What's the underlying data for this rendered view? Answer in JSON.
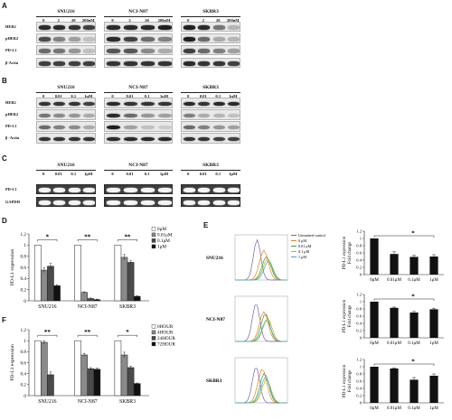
{
  "panels": {
    "A": {
      "label": "A",
      "row_labels": [
        "HER2",
        "pHER2",
        "PD-L1",
        "β-Actin"
      ],
      "cell_lines": [
        "SNU216",
        "NCI-N87",
        "SKBR3"
      ],
      "conc_labels": [
        "0",
        "2",
        "20",
        "200nM"
      ]
    },
    "B": {
      "label": "B",
      "row_labels": [
        "HER2",
        "pHER2",
        "PD-L1",
        "β -Actin"
      ],
      "cell_lines": [
        "SNU216",
        "NCI-N87",
        "SKBR3"
      ],
      "conc_labels": [
        "0",
        "0.01",
        "0.1",
        "1μM"
      ]
    },
    "C": {
      "label": "C",
      "row_labels": [
        "PD-L1",
        "GAPDH"
      ],
      "cell_lines": [
        "SNU216",
        "NCI-N87",
        "SKBR3"
      ],
      "conc_labels": [
        "0",
        "0.01",
        "0.1",
        "1μM"
      ]
    },
    "D": {
      "label": "D"
    },
    "E": {
      "label": "E",
      "cell_lines": [
        "SNU216",
        "NCI-N87",
        "SKBR3"
      ],
      "flow_legend": [
        "Unstained control",
        "0 μM",
        "0.01 μM",
        "0.1 μM",
        "1 μM"
      ],
      "flow_colors": [
        "#7a5fb0",
        "#e0821c",
        "#3c9a3c",
        "#c9b400",
        "#3aa6d8"
      ]
    },
    "F": {
      "label": "F"
    }
  },
  "chart_data": [
    {
      "id": "D",
      "type": "bar",
      "categories": [
        "SNU216",
        "NCI-N87",
        "SKBR3"
      ],
      "series": [
        {
          "name": "0μM",
          "values": [
            1.0,
            1.0,
            1.0
          ],
          "errors": [
            0,
            0,
            0
          ]
        },
        {
          "name": "0.01μM",
          "values": [
            0.55,
            0.15,
            0.78
          ],
          "errors": [
            0.04,
            0.01,
            0.05
          ]
        },
        {
          "name": "0.1μM",
          "values": [
            0.62,
            0.04,
            0.69
          ],
          "errors": [
            0.05,
            0.01,
            0.03
          ]
        },
        {
          "name": "1μM",
          "values": [
            0.27,
            0.02,
            0.08
          ],
          "errors": [
            0.02,
            0.01,
            0.01
          ]
        }
      ],
      "series_fills": [
        "#ffffff",
        "#8a8a8a",
        "#4a4a4a",
        "#111111"
      ],
      "ylabel": "PD-L1 expression",
      "ylim": [
        0,
        1.2
      ],
      "yticks": [
        "0",
        "0.2",
        "0.4",
        "0.6",
        "0.8",
        "1",
        "1.2"
      ],
      "significance": [
        "*",
        "**",
        "**"
      ],
      "legend": "right"
    },
    {
      "id": "F",
      "type": "bar",
      "categories": [
        "SNU216",
        "NCI-N87",
        "SKBR3"
      ],
      "series": [
        {
          "name": "0HOUR",
          "values": [
            1.0,
            1.0,
            1.0
          ],
          "errors": [
            0,
            0,
            0
          ]
        },
        {
          "name": "4HOUR",
          "values": [
            0.97,
            0.74,
            0.74
          ],
          "errors": [
            0.03,
            0.03,
            0.05
          ]
        },
        {
          "name": "24HOUR",
          "values": [
            0.38,
            0.49,
            0.51
          ],
          "errors": [
            0.05,
            0.02,
            0.03
          ]
        },
        {
          "name": "72HOUR",
          "values": [
            0.0,
            0.48,
            0.22
          ],
          "errors": [
            0,
            0.02,
            0.01
          ]
        }
      ],
      "series_fills": [
        "#ffffff",
        "#8a8a8a",
        "#4a4a4a",
        "#111111"
      ],
      "ylabel": "PD-L1 expression",
      "ylim": [
        0,
        1.2
      ],
      "yticks": [
        "0",
        "0.2",
        "0.4",
        "0.6",
        "0.8",
        "1",
        "1.2"
      ],
      "significance": [
        "**",
        "**",
        "*"
      ],
      "legend": "right"
    },
    {
      "id": "E1",
      "type": "bar",
      "categories": [
        "0μM",
        "0.01μM",
        "0.1μM",
        "1μM"
      ],
      "values": [
        1.0,
        0.57,
        0.49,
        0.5
      ],
      "errors": [
        0,
        0.06,
        0.04,
        0.05
      ],
      "ylabel": "PD-L1 expression Fold change",
      "ylim": [
        0,
        1.2
      ],
      "yticks": [
        "0",
        "0.2",
        "0.4",
        "0.6",
        "0.8",
        "1",
        "1.2"
      ],
      "significance": "*"
    },
    {
      "id": "E2",
      "type": "bar",
      "categories": [
        "0μM",
        "0.01μM",
        "0.1μM",
        "1μM"
      ],
      "values": [
        1.0,
        0.83,
        0.7,
        0.79
      ],
      "errors": [
        0,
        0.02,
        0.03,
        0.03
      ],
      "ylabel": "PD-L1 expression Fold change",
      "ylim": [
        0,
        1.2
      ],
      "yticks": [
        "0",
        "0.2",
        "0.4",
        "0.6",
        "0.8",
        "1",
        "1.2"
      ],
      "significance": "*"
    },
    {
      "id": "E3",
      "type": "bar",
      "categories": [
        "0μM",
        "0.01μM",
        "0.1μM",
        "1μM"
      ],
      "values": [
        1.0,
        0.95,
        0.64,
        0.75
      ],
      "errors": [
        0,
        0.02,
        0.06,
        0.05
      ],
      "ylabel": "PD-L1 expression Fold change",
      "ylim": [
        0,
        1.2
      ],
      "yticks": [
        "0",
        "0.2",
        "0.4",
        "0.6",
        "0.8",
        "1",
        "1.2"
      ],
      "significance": "*"
    }
  ]
}
